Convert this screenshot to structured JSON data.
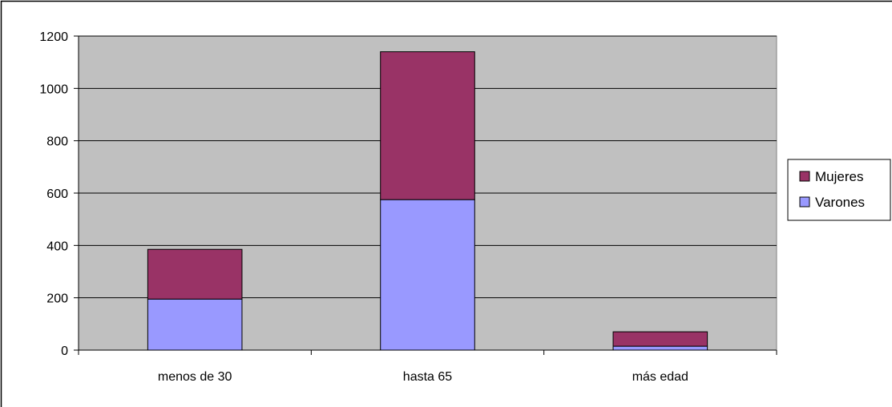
{
  "chart_data": {
    "type": "bar",
    "stacked": true,
    "categories": [
      "menos de 30",
      "hasta 65",
      "más edad"
    ],
    "series": [
      {
        "name": "Varones",
        "values": [
          195,
          575,
          15
        ],
        "color": "#9999ff"
      },
      {
        "name": "Mujeres",
        "values": [
          190,
          565,
          55
        ],
        "color": "#993366"
      }
    ],
    "ylim": [
      0,
      1200
    ],
    "yticks": [
      0,
      200,
      400,
      600,
      800,
      1000,
      1200
    ],
    "grid": true,
    "legend_position": "right",
    "legend_order": [
      "Mujeres",
      "Varones"
    ],
    "plot_background": "#c0c0c0",
    "title": "",
    "xlabel": "",
    "ylabel": ""
  }
}
